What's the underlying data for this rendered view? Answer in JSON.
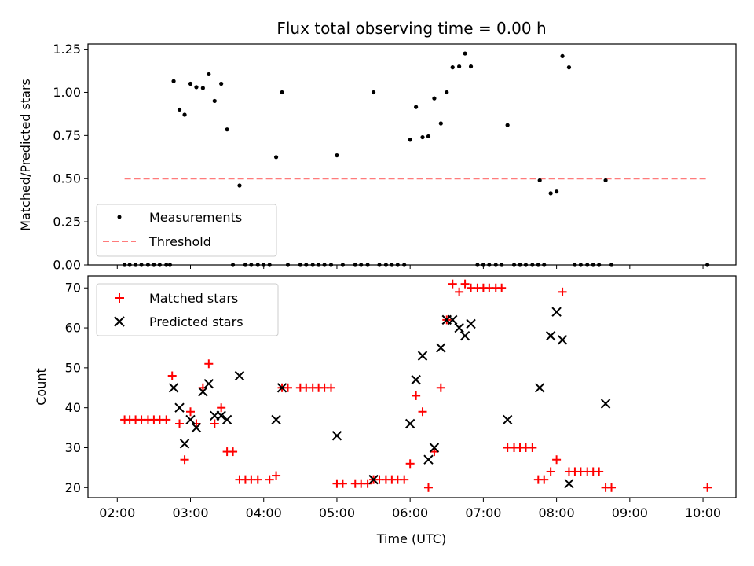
{
  "chart_data": [
    {
      "type": "scatter",
      "title": "Flux total observing time = 0.00 h",
      "xlabel": "",
      "ylabel": "Matched/Predicted stars",
      "xlim": [
        1.6,
        10.45
      ],
      "ylim": [
        0.0,
        1.28
      ],
      "yticks": [
        0.0,
        0.25,
        0.5,
        0.75,
        1.0,
        1.25
      ],
      "ytick_labels": [
        "0.00",
        "0.25",
        "0.50",
        "0.75",
        "1.00",
        "1.25"
      ],
      "legend_position": "lower-left",
      "series": [
        {
          "name": "Measurements",
          "marker": "dot",
          "color": "#000000",
          "points": [
            [
              2.1,
              0
            ],
            [
              2.17,
              0
            ],
            [
              2.25,
              0
            ],
            [
              2.33,
              0
            ],
            [
              2.42,
              0
            ],
            [
              2.5,
              0
            ],
            [
              2.58,
              0
            ],
            [
              2.67,
              0
            ],
            [
              2.72,
              0
            ],
            [
              2.77,
              1.065
            ],
            [
              2.85,
              0.9
            ],
            [
              2.92,
              0.87
            ],
            [
              3.0,
              1.05
            ],
            [
              3.08,
              1.03
            ],
            [
              3.17,
              1.025
            ],
            [
              3.25,
              1.105
            ],
            [
              3.33,
              0.95
            ],
            [
              3.42,
              1.05
            ],
            [
              3.5,
              0.785
            ],
            [
              3.58,
              0
            ],
            [
              3.67,
              0.46
            ],
            [
              3.75,
              0
            ],
            [
              3.83,
              0
            ],
            [
              3.92,
              0
            ],
            [
              4.0,
              0
            ],
            [
              4.08,
              0
            ],
            [
              4.17,
              0.625
            ],
            [
              4.25,
              1.0
            ],
            [
              4.33,
              0
            ],
            [
              4.5,
              0
            ],
            [
              4.58,
              0
            ],
            [
              4.67,
              0
            ],
            [
              4.75,
              0
            ],
            [
              4.83,
              0
            ],
            [
              4.92,
              0
            ],
            [
              5.0,
              0.635
            ],
            [
              5.08,
              0
            ],
            [
              5.25,
              0
            ],
            [
              5.33,
              0
            ],
            [
              5.42,
              0
            ],
            [
              5.5,
              1.0
            ],
            [
              5.58,
              0
            ],
            [
              5.67,
              0
            ],
            [
              5.75,
              0
            ],
            [
              5.83,
              0
            ],
            [
              5.92,
              0
            ],
            [
              6.0,
              0.725
            ],
            [
              6.08,
              0.915
            ],
            [
              6.17,
              0.74
            ],
            [
              6.25,
              0.745
            ],
            [
              6.33,
              0.965
            ],
            [
              6.42,
              0.82
            ],
            [
              6.5,
              1.0
            ],
            [
              6.58,
              1.145
            ],
            [
              6.67,
              1.15
            ],
            [
              6.75,
              1.225
            ],
            [
              6.83,
              1.15
            ],
            [
              6.92,
              0
            ],
            [
              7.0,
              0
            ],
            [
              7.08,
              0
            ],
            [
              7.17,
              0
            ],
            [
              7.25,
              0
            ],
            [
              7.33,
              0.81
            ],
            [
              7.42,
              0
            ],
            [
              7.5,
              0
            ],
            [
              7.58,
              0
            ],
            [
              7.67,
              0
            ],
            [
              7.75,
              0
            ],
            [
              7.83,
              0
            ],
            [
              7.92,
              0.415
            ],
            [
              8.0,
              0.425
            ],
            [
              8.08,
              1.21
            ],
            [
              8.17,
              1.145
            ],
            [
              8.25,
              0
            ],
            [
              8.33,
              0
            ],
            [
              8.42,
              0
            ],
            [
              8.5,
              0
            ],
            [
              8.58,
              0
            ],
            [
              8.67,
              0.49
            ],
            [
              8.75,
              0
            ],
            [
              10.06,
              0
            ],
            [
              7.77,
              0.49
            ]
          ]
        },
        {
          "name": "Threshold",
          "marker": "dashed-line",
          "color": "#ff7b7b",
          "points": [
            [
              2.1,
              0.5
            ],
            [
              10.06,
              0.5
            ]
          ]
        }
      ]
    },
    {
      "type": "scatter",
      "title": "",
      "xlabel": "Time (UTC)",
      "ylabel": "Count",
      "xlim": [
        1.6,
        10.45
      ],
      "ylim": [
        17.5,
        73.0
      ],
      "xticks": [
        2,
        3,
        4,
        5,
        6,
        7,
        8,
        9,
        10
      ],
      "xtick_labels": [
        "02:00",
        "03:00",
        "04:00",
        "05:00",
        "06:00",
        "07:00",
        "08:00",
        "09:00",
        "10:00"
      ],
      "yticks": [
        20,
        30,
        40,
        50,
        60,
        70
      ],
      "ytick_labels": [
        "20",
        "30",
        "40",
        "50",
        "60",
        "70"
      ],
      "legend_position": "upper-left",
      "series": [
        {
          "name": "Matched stars",
          "marker": "plus",
          "color": "#ff0000",
          "points": [
            [
              2.1,
              37
            ],
            [
              2.17,
              37
            ],
            [
              2.25,
              37
            ],
            [
              2.33,
              37
            ],
            [
              2.42,
              37
            ],
            [
              2.5,
              37
            ],
            [
              2.58,
              37
            ],
            [
              2.67,
              37
            ],
            [
              2.75,
              48
            ],
            [
              2.85,
              36
            ],
            [
              2.92,
              27
            ],
            [
              3.0,
              39
            ],
            [
              3.08,
              36
            ],
            [
              3.17,
              45
            ],
            [
              3.25,
              51
            ],
            [
              3.33,
              36
            ],
            [
              3.42,
              40
            ],
            [
              3.5,
              29
            ],
            [
              3.58,
              29
            ],
            [
              3.67,
              22
            ],
            [
              3.75,
              22
            ],
            [
              3.83,
              22
            ],
            [
              3.92,
              22
            ],
            [
              4.08,
              22
            ],
            [
              4.17,
              23
            ],
            [
              4.25,
              45
            ],
            [
              4.33,
              45
            ],
            [
              4.5,
              45
            ],
            [
              4.58,
              45
            ],
            [
              4.67,
              45
            ],
            [
              4.75,
              45
            ],
            [
              4.83,
              45
            ],
            [
              4.92,
              45
            ],
            [
              5.0,
              21
            ],
            [
              5.08,
              21
            ],
            [
              5.25,
              21
            ],
            [
              5.33,
              21
            ],
            [
              5.42,
              21
            ],
            [
              5.5,
              22
            ],
            [
              5.58,
              22
            ],
            [
              5.67,
              22
            ],
            [
              5.75,
              22
            ],
            [
              5.83,
              22
            ],
            [
              5.92,
              22
            ],
            [
              6.0,
              26
            ],
            [
              6.08,
              43
            ],
            [
              6.17,
              39
            ],
            [
              6.25,
              20
            ],
            [
              6.33,
              29
            ],
            [
              6.42,
              45
            ],
            [
              6.5,
              62
            ],
            [
              6.58,
              71
            ],
            [
              6.67,
              69
            ],
            [
              6.75,
              71
            ],
            [
              6.83,
              70
            ],
            [
              6.92,
              70
            ],
            [
              7.0,
              70
            ],
            [
              7.08,
              70
            ],
            [
              7.17,
              70
            ],
            [
              7.25,
              70
            ],
            [
              7.33,
              30
            ],
            [
              7.42,
              30
            ],
            [
              7.5,
              30
            ],
            [
              7.58,
              30
            ],
            [
              7.67,
              30
            ],
            [
              7.75,
              22
            ],
            [
              7.83,
              22
            ],
            [
              7.92,
              24
            ],
            [
              8.0,
              27
            ],
            [
              8.08,
              69
            ],
            [
              8.17,
              24
            ],
            [
              8.25,
              24
            ],
            [
              8.33,
              24
            ],
            [
              8.42,
              24
            ],
            [
              8.5,
              24
            ],
            [
              8.58,
              24
            ],
            [
              8.67,
              20
            ],
            [
              8.75,
              20
            ],
            [
              10.06,
              20
            ]
          ]
        },
        {
          "name": "Predicted stars",
          "marker": "x",
          "color": "#000000",
          "points": [
            [
              2.77,
              45
            ],
            [
              2.85,
              40
            ],
            [
              2.92,
              31
            ],
            [
              3.0,
              37
            ],
            [
              3.08,
              35
            ],
            [
              3.17,
              44
            ],
            [
              3.25,
              46
            ],
            [
              3.33,
              38
            ],
            [
              3.42,
              38
            ],
            [
              3.5,
              37
            ],
            [
              3.67,
              48
            ],
            [
              4.17,
              37
            ],
            [
              4.25,
              45
            ],
            [
              5.0,
              33
            ],
            [
              5.5,
              22
            ],
            [
              6.0,
              36
            ],
            [
              6.08,
              47
            ],
            [
              6.17,
              53
            ],
            [
              6.25,
              27
            ],
            [
              6.33,
              30
            ],
            [
              6.42,
              55
            ],
            [
              6.5,
              62
            ],
            [
              6.58,
              62
            ],
            [
              6.67,
              60
            ],
            [
              6.75,
              58
            ],
            [
              6.83,
              61
            ],
            [
              7.33,
              37
            ],
            [
              7.77,
              45
            ],
            [
              7.92,
              58
            ],
            [
              8.0,
              64
            ],
            [
              8.08,
              57
            ],
            [
              8.17,
              21
            ],
            [
              8.67,
              41
            ]
          ]
        }
      ]
    }
  ]
}
